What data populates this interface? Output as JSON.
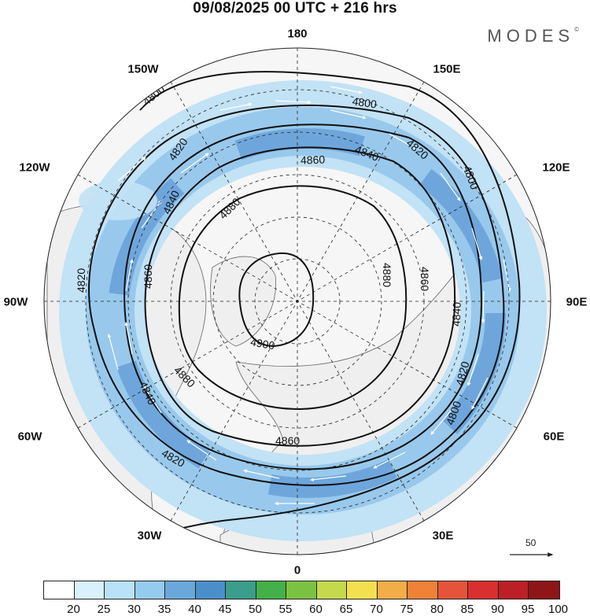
{
  "title": "09/08/2025  00 UTC  + 216 hrs",
  "brand": "MODES",
  "brand_mark": "©",
  "longitude_labels": {
    "top": "180",
    "bottom": "0",
    "left": "90W",
    "right": "90E",
    "upper_left": "150W",
    "upper_right": "150E",
    "mid_upper_left": "120W",
    "mid_upper_right": "120E",
    "mid_lower_left": "60W",
    "mid_lower_right": "60E",
    "lower_left": "30W",
    "lower_right": "30E"
  },
  "contour_labels": {
    "c4800_a": "4800",
    "c4800_b": "4800",
    "c4800_c": "4800",
    "c4800_d": "4800",
    "c4820_a": "4820",
    "c4820_b": "4820",
    "c4820_c": "4820",
    "c4820_d": "4820",
    "c4820_e": "4820",
    "c4840_a": "4840",
    "c4840_b": "4840",
    "c4840_c": "4840",
    "c4840_d": "4840",
    "c4860_a": "4860",
    "c4860_b": "4860",
    "c4860_c": "4860",
    "c4860_d": "4860",
    "c4880_a": "4880",
    "c4880_b": "4880",
    "c4880_c": "4880",
    "c4900_a": "4900"
  },
  "reference_vector": {
    "label": "50"
  },
  "colorbar": {
    "ticks": [
      "20",
      "25",
      "30",
      "35",
      "40",
      "45",
      "50",
      "55",
      "60",
      "65",
      "70",
      "75",
      "80",
      "85",
      "90",
      "95",
      "100"
    ],
    "colors": [
      "#ffffff",
      "#d9f1fc",
      "#b8e2f7",
      "#95cbee",
      "#6aa8dc",
      "#4b8fca",
      "#3a9e8a",
      "#44b049",
      "#7cc242",
      "#c4d94c",
      "#f4df4e",
      "#f3ad48",
      "#ef8236",
      "#e5543a",
      "#d92f2e",
      "#bd1f27",
      "#8f1618"
    ]
  },
  "colors": {
    "land": "#efefef",
    "ocean": "#f6f6f6",
    "jet_light": "#c2e2f5",
    "jet_mid": "#98c9ec",
    "jet_strong": "#6ea6dc",
    "contour": "#111111",
    "wind_arrow": "#ffffff",
    "coast": "#666666",
    "grid": "#222222"
  }
}
